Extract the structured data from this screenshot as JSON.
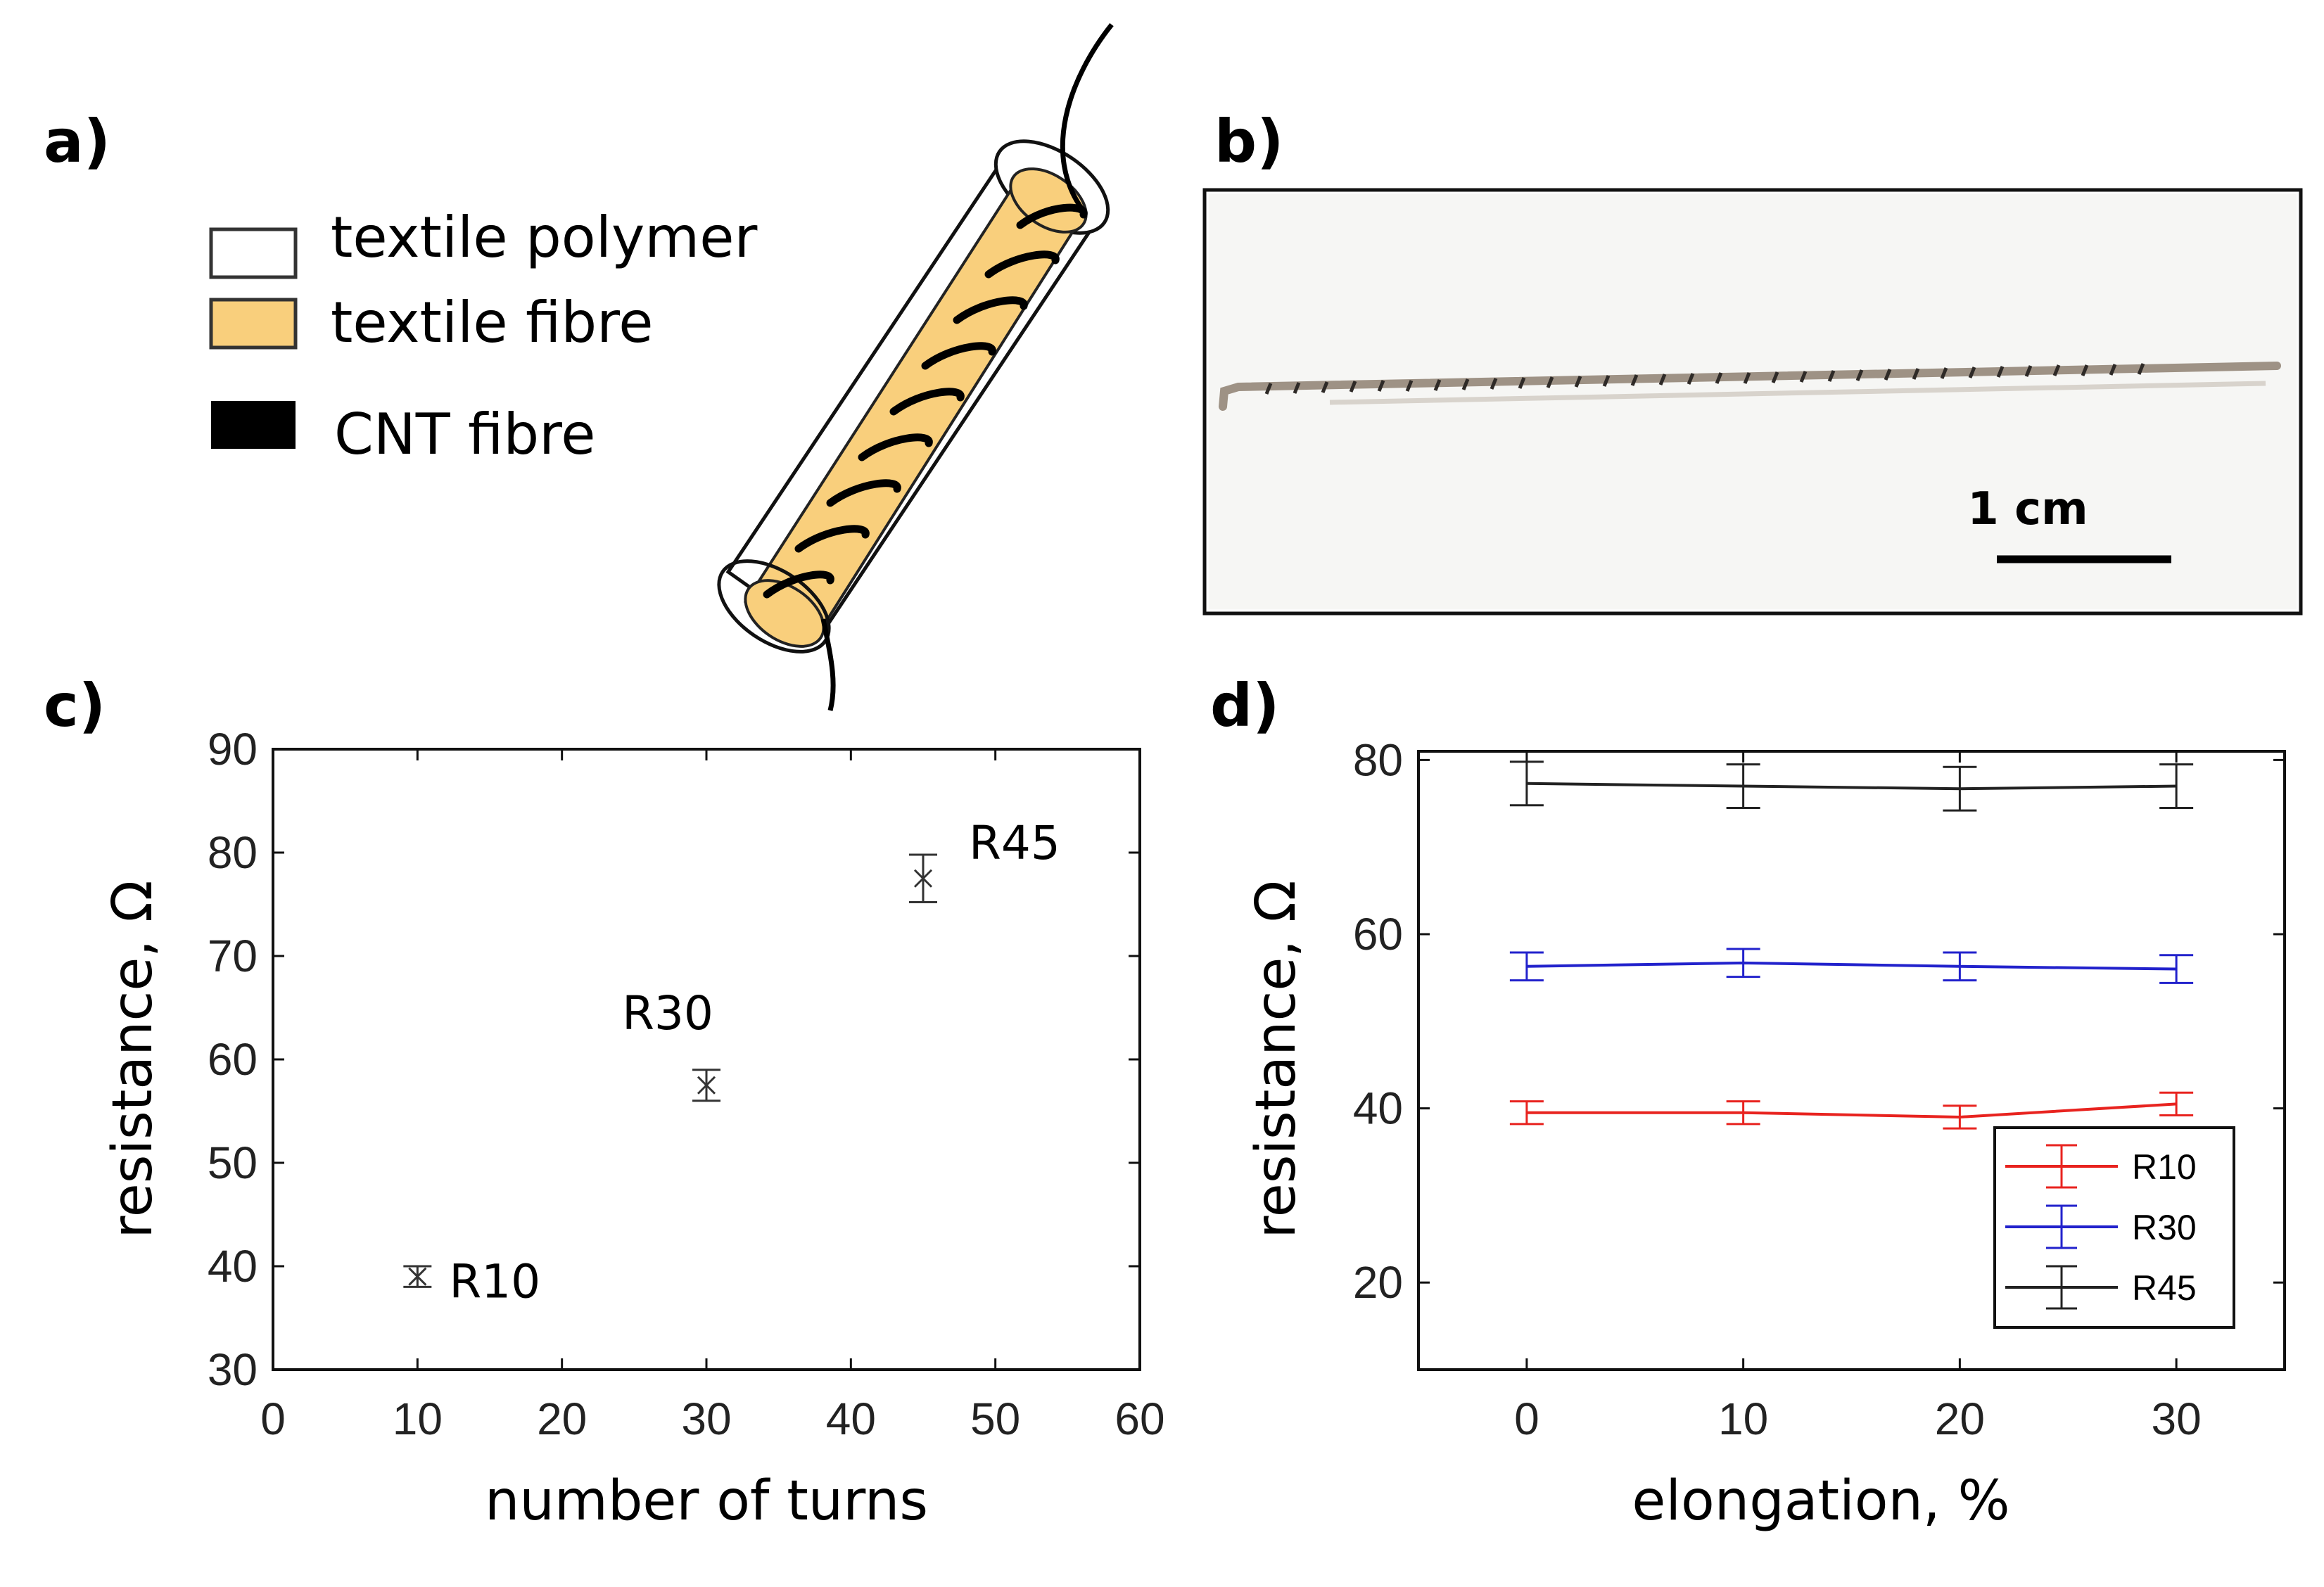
{
  "panel_labels": {
    "a": "a)",
    "b": "b)",
    "c": "c)",
    "d": "d)"
  },
  "schematic": {
    "legend": [
      {
        "label": "textile polymer",
        "color": "#ffffff"
      },
      {
        "label": "textile fibre",
        "color": "#f9cf7c"
      },
      {
        "label": "CNT fibre",
        "color": "#000000"
      }
    ]
  },
  "photo": {
    "scale_bar_label": "1 cm"
  },
  "chart_data": [
    {
      "type": "scatter",
      "panel": "c",
      "xlabel": "number of turns",
      "ylabel": "resistance, Ω",
      "xlim": [
        0,
        60
      ],
      "ylim": [
        30,
        90
      ],
      "xticks": [
        0,
        10,
        20,
        30,
        40,
        50,
        60
      ],
      "yticks": [
        30,
        40,
        50,
        60,
        70,
        80,
        90
      ],
      "points": [
        {
          "name": "R10",
          "x": 10,
          "y": 39,
          "err": 1
        },
        {
          "name": "R30",
          "x": 30,
          "y": 57.5,
          "err": 1.5
        },
        {
          "name": "R45",
          "x": 45,
          "y": 77.5,
          "err": 2.3
        }
      ],
      "color": "#333333"
    },
    {
      "type": "line",
      "panel": "d",
      "xlabel": "elongation, %",
      "ylabel": "resistance, Ω",
      "xlim": [
        -5,
        35
      ],
      "ylim": [
        10,
        81
      ],
      "xticks": [
        0,
        10,
        20,
        30
      ],
      "yticks": [
        20,
        40,
        60,
        80
      ],
      "x": [
        0,
        10,
        20,
        30
      ],
      "series": [
        {
          "name": "R10",
          "color": "#e8231f",
          "values": [
            39.5,
            39.5,
            39,
            40.5
          ],
          "err": [
            1.3,
            1.3,
            1.3,
            1.3
          ]
        },
        {
          "name": "R30",
          "color": "#2222cc",
          "values": [
            56.3,
            56.7,
            56.3,
            56
          ],
          "err": [
            1.6,
            1.6,
            1.6,
            1.6
          ]
        },
        {
          "name": "R45",
          "color": "#222222",
          "values": [
            77.3,
            77,
            76.7,
            77
          ],
          "err": [
            2.5,
            2.5,
            2.5,
            2.5
          ]
        }
      ],
      "legend_position": "bottom-right"
    }
  ]
}
